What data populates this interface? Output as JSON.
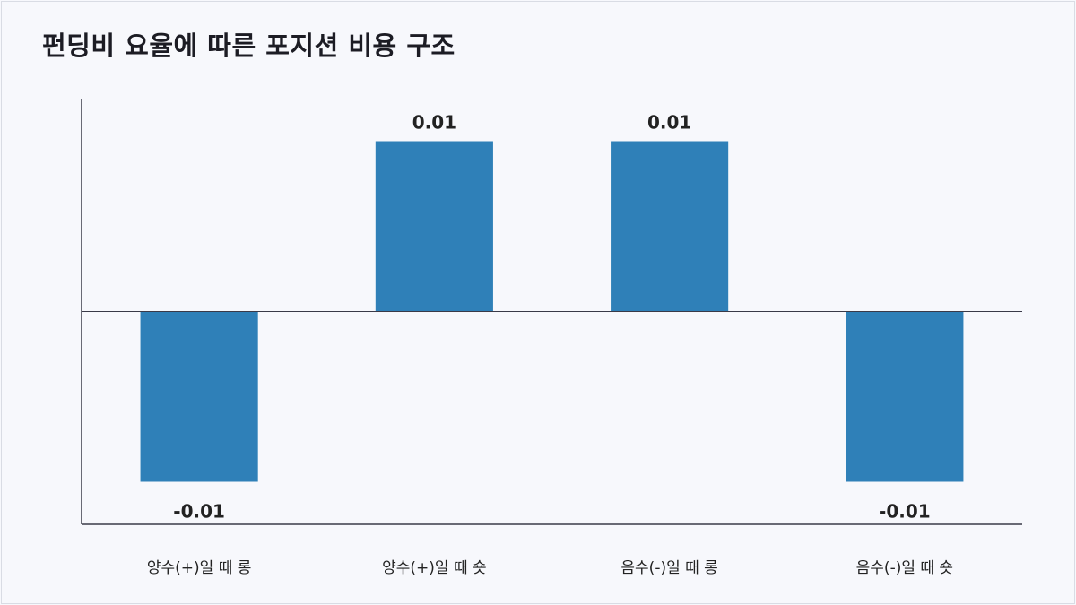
{
  "title": "펀딩비 요율에 따른 포지션 비용 구조",
  "chart_data": {
    "type": "bar",
    "title": "펀딩비 요율에 따른 포지션 비용 구조",
    "categories": [
      "양수(+)일 때 롱",
      "양수(+)일 때 숏",
      "음수(-)일 때 롱",
      "음수(-)일 때 숏"
    ],
    "values": [
      -0.01,
      0.01,
      0.01,
      -0.01
    ],
    "data_labels": [
      "-0.01",
      "0.01",
      "0.01",
      "-0.01"
    ],
    "xlabel": "",
    "ylabel": "",
    "ylim": [
      -0.0125,
      0.0125
    ],
    "grid": false,
    "bar_color": "#2f80b8",
    "axis_color": "#3a3a48"
  }
}
